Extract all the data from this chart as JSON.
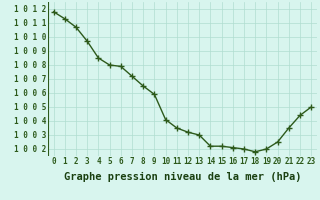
{
  "x": [
    0,
    1,
    2,
    3,
    4,
    5,
    6,
    7,
    8,
    9,
    10,
    11,
    12,
    13,
    14,
    15,
    16,
    17,
    18,
    19,
    20,
    21,
    22,
    23
  ],
  "y": [
    1011.8,
    1011.3,
    1010.7,
    1009.7,
    1008.5,
    1008.0,
    1007.9,
    1007.2,
    1006.5,
    1005.9,
    1004.1,
    1003.5,
    1003.2,
    1003.0,
    1002.2,
    1002.2,
    1002.1,
    1002.0,
    1001.8,
    1002.0,
    1002.5,
    1003.5,
    1004.4,
    1005.0
  ],
  "ylim_min": 1001.5,
  "ylim_max": 1012.5,
  "yticks": [
    1002,
    1003,
    1004,
    1005,
    1006,
    1007,
    1008,
    1009,
    1010,
    1011,
    1012
  ],
  "xticks": [
    0,
    1,
    2,
    3,
    4,
    5,
    6,
    7,
    8,
    9,
    10,
    11,
    12,
    13,
    14,
    15,
    16,
    17,
    18,
    19,
    20,
    21,
    22,
    23
  ],
  "xlabel": "Graphe pression niveau de la mer (hPa)",
  "line_color": "#2d5a1b",
  "marker": "+",
  "marker_size": 5,
  "bg_color": "#d8f5ee",
  "grid_color": "#b0ddd0",
  "tick_label_color": "#2d5a1b",
  "xlabel_color": "#1a4010",
  "tick_fontsize": 5.5,
  "xlabel_fontsize": 7.5,
  "linewidth": 1.0
}
